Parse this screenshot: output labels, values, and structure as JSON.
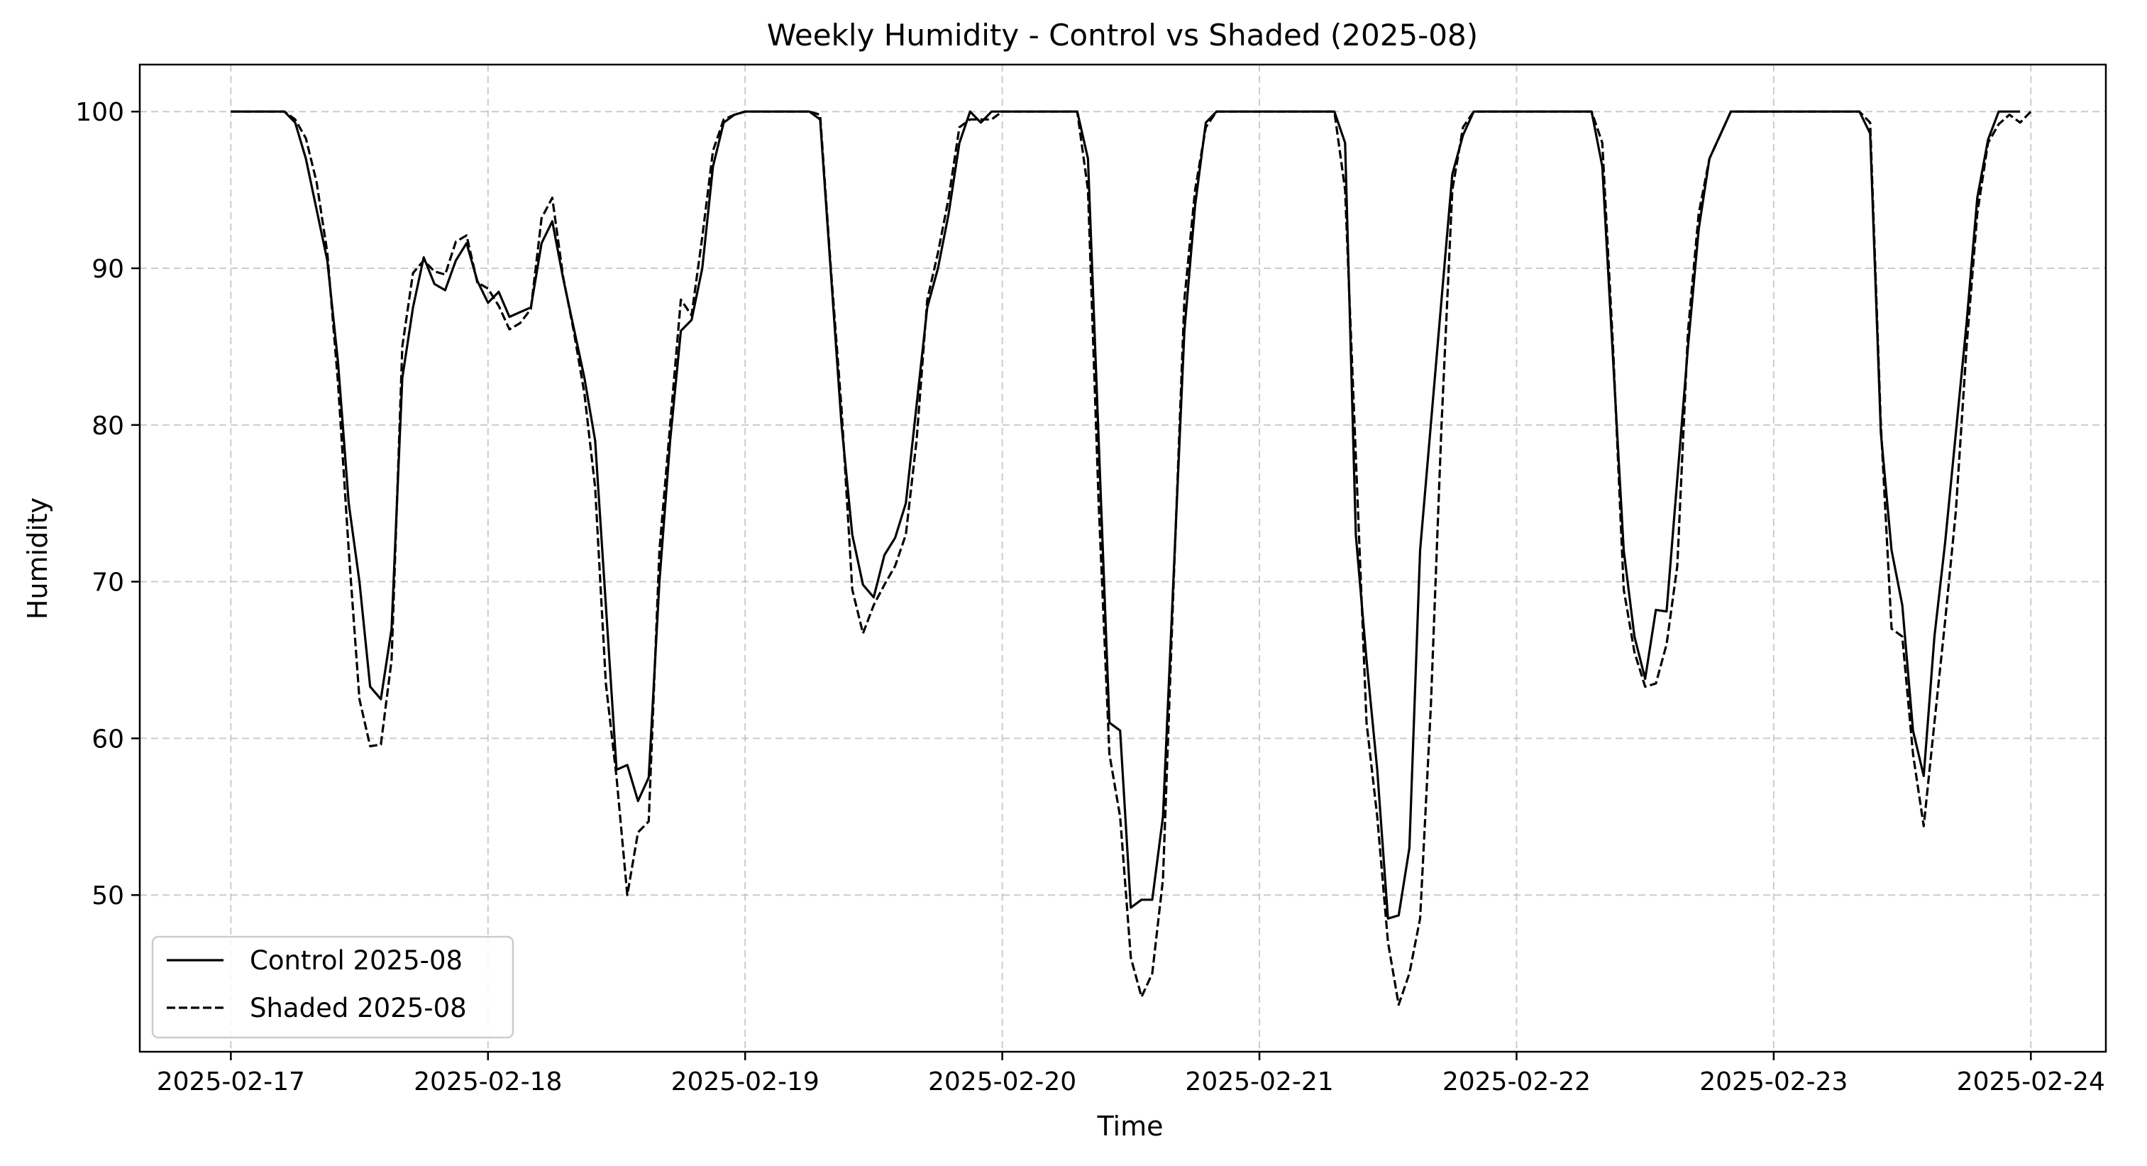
{
  "chart_data": {
    "type": "line",
    "title": "Weekly Humidity - Control vs Shaded (2025-08)",
    "xlabel": "Time",
    "ylabel": "Humidity",
    "x_range": [
      "2025-02-16T15:30",
      "2025-02-24T07:00"
    ],
    "x_ticks": [
      "2025-02-17",
      "2025-02-18",
      "2025-02-19",
      "2025-02-20",
      "2025-02-21",
      "2025-02-22",
      "2025-02-23",
      "2025-02-24"
    ],
    "ylim": [
      40,
      103
    ],
    "y_ticks": [
      50,
      60,
      70,
      80,
      90,
      100
    ],
    "grid": true,
    "legend_position": "lower-left",
    "series": [
      {
        "name": "Control 2025-08",
        "line_style": "solid",
        "color": "#000000",
        "points": [
          [
            "2025-02-17T00:00",
            100
          ],
          [
            "2025-02-17T05:00",
            100
          ],
          [
            "2025-02-17T06:00",
            99.3
          ],
          [
            "2025-02-17T07:00",
            97
          ],
          [
            "2025-02-17T09:00",
            90.5
          ],
          [
            "2025-02-17T10:00",
            84
          ],
          [
            "2025-02-17T11:00",
            75
          ],
          [
            "2025-02-17T12:00",
            70
          ],
          [
            "2025-02-17T13:00",
            63.3
          ],
          [
            "2025-02-17T14:00",
            62.5
          ],
          [
            "2025-02-17T15:00",
            67
          ],
          [
            "2025-02-17T16:00",
            83
          ],
          [
            "2025-02-17T17:00",
            87.5
          ],
          [
            "2025-02-17T18:00",
            90.7
          ],
          [
            "2025-02-17T19:00",
            89
          ],
          [
            "2025-02-17T20:00",
            88.6
          ],
          [
            "2025-02-17T21:00",
            90.5
          ],
          [
            "2025-02-17T22:00",
            91.6
          ],
          [
            "2025-02-17T23:00",
            89.2
          ],
          [
            "2025-02-18T00:00",
            87.8
          ],
          [
            "2025-02-18T01:00",
            88.5
          ],
          [
            "2025-02-18T02:00",
            86.9
          ],
          [
            "2025-02-18T04:00",
            87.5
          ],
          [
            "2025-02-18T05:00",
            91.6
          ],
          [
            "2025-02-18T06:00",
            93
          ],
          [
            "2025-02-18T07:00",
            89.4
          ],
          [
            "2025-02-18T09:00",
            83
          ],
          [
            "2025-02-18T10:00",
            79
          ],
          [
            "2025-02-18T12:00",
            58
          ],
          [
            "2025-02-18T13:00",
            58.3
          ],
          [
            "2025-02-18T14:00",
            56
          ],
          [
            "2025-02-18T15:00",
            57.5
          ],
          [
            "2025-02-18T16:00",
            70
          ],
          [
            "2025-02-18T17:00",
            79
          ],
          [
            "2025-02-18T18:00",
            86
          ],
          [
            "2025-02-18T19:00",
            86.7
          ],
          [
            "2025-02-18T20:00",
            90
          ],
          [
            "2025-02-18T21:00",
            96.5
          ],
          [
            "2025-02-18T22:00",
            99.3
          ],
          [
            "2025-02-18T23:00",
            99.8
          ],
          [
            "2025-02-19T00:00",
            100
          ],
          [
            "2025-02-19T06:00",
            100
          ],
          [
            "2025-02-19T07:00",
            99.5
          ],
          [
            "2025-02-19T09:00",
            80
          ],
          [
            "2025-02-19T10:00",
            73
          ],
          [
            "2025-02-19T11:00",
            69.8
          ],
          [
            "2025-02-19T12:00",
            69
          ],
          [
            "2025-02-19T13:00",
            71.7
          ],
          [
            "2025-02-19T14:00",
            72.8
          ],
          [
            "2025-02-19T15:00",
            75
          ],
          [
            "2025-02-19T17:00",
            87.5
          ],
          [
            "2025-02-19T18:00",
            90
          ],
          [
            "2025-02-19T19:00",
            93.5
          ],
          [
            "2025-02-19T20:00",
            98
          ],
          [
            "2025-02-19T21:00",
            100
          ],
          [
            "2025-02-19T22:00",
            99.3
          ],
          [
            "2025-02-19T23:00",
            100
          ],
          [
            "2025-02-20T07:00",
            100
          ],
          [
            "2025-02-20T08:00",
            97
          ],
          [
            "2025-02-20T10:00",
            61
          ],
          [
            "2025-02-20T11:00",
            60.5
          ],
          [
            "2025-02-20T12:00",
            49.2
          ],
          [
            "2025-02-20T13:00",
            49.7
          ],
          [
            "2025-02-20T14:00",
            49.7
          ],
          [
            "2025-02-20T15:00",
            55
          ],
          [
            "2025-02-20T17:00",
            86
          ],
          [
            "2025-02-20T18:00",
            94
          ],
          [
            "2025-02-20T19:00",
            99.3
          ],
          [
            "2025-02-20T20:00",
            100
          ],
          [
            "2025-02-21T07:00",
            100
          ],
          [
            "2025-02-21T08:00",
            98
          ],
          [
            "2025-02-21T09:00",
            73
          ],
          [
            "2025-02-21T10:00",
            65
          ],
          [
            "2025-02-21T11:00",
            58
          ],
          [
            "2025-02-21T12:00",
            48.5
          ],
          [
            "2025-02-21T13:00",
            48.7
          ],
          [
            "2025-02-21T14:00",
            53
          ],
          [
            "2025-02-21T15:00",
            72
          ],
          [
            "2025-02-21T16:00",
            80
          ],
          [
            "2025-02-21T17:00",
            88
          ],
          [
            "2025-02-21T18:00",
            96
          ],
          [
            "2025-02-21T19:00",
            98.5
          ],
          [
            "2025-02-21T20:00",
            100
          ],
          [
            "2025-02-22T07:00",
            100
          ],
          [
            "2025-02-22T08:00",
            96.5
          ],
          [
            "2025-02-22T10:00",
            72
          ],
          [
            "2025-02-22T11:00",
            66.5
          ],
          [
            "2025-02-22T12:00",
            63.8
          ],
          [
            "2025-02-22T13:00",
            68.2
          ],
          [
            "2025-02-22T14:00",
            68.1
          ],
          [
            "2025-02-22T16:00",
            85
          ],
          [
            "2025-02-22T17:00",
            92.5
          ],
          [
            "2025-02-22T18:00",
            97
          ],
          [
            "2025-02-22T20:00",
            100
          ],
          [
            "2025-02-23T08:00",
            100
          ],
          [
            "2025-02-23T09:00",
            98.6
          ],
          [
            "2025-02-23T10:00",
            79.5
          ],
          [
            "2025-02-23T11:00",
            72
          ],
          [
            "2025-02-23T12:00",
            68.5
          ],
          [
            "2025-02-23T13:00",
            60.5
          ],
          [
            "2025-02-23T14:00",
            57.6
          ],
          [
            "2025-02-23T15:00",
            66.5
          ],
          [
            "2025-02-23T16:00",
            72.5
          ],
          [
            "2025-02-23T17:00",
            79.5
          ],
          [
            "2025-02-23T18:00",
            86.5
          ],
          [
            "2025-02-23T19:00",
            94.5
          ],
          [
            "2025-02-23T20:00",
            98.2
          ],
          [
            "2025-02-23T21:00",
            100
          ],
          [
            "2025-02-23T23:00",
            100
          ]
        ]
      },
      {
        "name": "Shaded 2025-08",
        "line_style": "dashed",
        "color": "#000000",
        "points": [
          [
            "2025-02-17T00:00",
            100
          ],
          [
            "2025-02-17T05:00",
            100
          ],
          [
            "2025-02-17T06:00",
            99.5
          ],
          [
            "2025-02-17T07:00",
            98.3
          ],
          [
            "2025-02-17T08:00",
            95.5
          ],
          [
            "2025-02-17T09:00",
            91
          ],
          [
            "2025-02-17T10:00",
            82.7
          ],
          [
            "2025-02-17T11:00",
            72
          ],
          [
            "2025-02-17T12:00",
            62.5
          ],
          [
            "2025-02-17T13:00",
            59.5
          ],
          [
            "2025-02-17T14:00",
            59.6
          ],
          [
            "2025-02-17T15:00",
            65
          ],
          [
            "2025-02-17T16:00",
            85
          ],
          [
            "2025-02-17T17:00",
            89.7
          ],
          [
            "2025-02-17T18:00",
            90.5
          ],
          [
            "2025-02-17T19:00",
            89.8
          ],
          [
            "2025-02-17T20:00",
            89.6
          ],
          [
            "2025-02-17T21:00",
            91.7
          ],
          [
            "2025-02-17T22:00",
            92.1
          ],
          [
            "2025-02-17T23:00",
            89.1
          ],
          [
            "2025-02-18T00:00",
            88.7
          ],
          [
            "2025-02-18T01:00",
            87.6
          ],
          [
            "2025-02-18T02:00",
            86.1
          ],
          [
            "2025-02-18T03:00",
            86.5
          ],
          [
            "2025-02-18T04:00",
            87.4
          ],
          [
            "2025-02-18T05:00",
            93.2
          ],
          [
            "2025-02-18T06:00",
            94.5
          ],
          [
            "2025-02-18T07:00",
            89.5
          ],
          [
            "2025-02-18T08:00",
            86
          ],
          [
            "2025-02-18T09:00",
            82
          ],
          [
            "2025-02-18T10:00",
            76
          ],
          [
            "2025-02-18T11:00",
            63.5
          ],
          [
            "2025-02-18T12:00",
            57.5
          ],
          [
            "2025-02-18T13:00",
            50
          ],
          [
            "2025-02-18T14:00",
            54
          ],
          [
            "2025-02-18T15:00",
            54.7
          ],
          [
            "2025-02-18T16:00",
            72
          ],
          [
            "2025-02-18T17:00",
            80
          ],
          [
            "2025-02-18T18:00",
            88
          ],
          [
            "2025-02-18T19:00",
            87
          ],
          [
            "2025-02-18T20:00",
            92
          ],
          [
            "2025-02-18T21:00",
            97.5
          ],
          [
            "2025-02-18T22:00",
            99.5
          ],
          [
            "2025-02-18T23:00",
            99.8
          ],
          [
            "2025-02-19T00:00",
            100
          ],
          [
            "2025-02-19T06:00",
            100
          ],
          [
            "2025-02-19T07:00",
            99.8
          ],
          [
            "2025-02-19T08:00",
            90
          ],
          [
            "2025-02-19T09:00",
            81
          ],
          [
            "2025-02-19T10:00",
            69.5
          ],
          [
            "2025-02-19T11:00",
            66.7
          ],
          [
            "2025-02-19T12:00",
            68.5
          ],
          [
            "2025-02-19T13:00",
            69.8
          ],
          [
            "2025-02-19T14:00",
            71
          ],
          [
            "2025-02-19T15:00",
            73
          ],
          [
            "2025-02-19T16:00",
            79
          ],
          [
            "2025-02-19T17:00",
            88
          ],
          [
            "2025-02-19T18:00",
            91
          ],
          [
            "2025-02-19T19:00",
            94.5
          ],
          [
            "2025-02-19T20:00",
            99
          ],
          [
            "2025-02-19T21:00",
            99.5
          ],
          [
            "2025-02-19T23:00",
            99.5
          ],
          [
            "2025-02-20T00:00",
            100
          ],
          [
            "2025-02-20T07:00",
            100
          ],
          [
            "2025-02-20T08:00",
            95
          ],
          [
            "2025-02-20T09:00",
            75
          ],
          [
            "2025-02-20T10:00",
            59
          ],
          [
            "2025-02-20T11:00",
            55
          ],
          [
            "2025-02-20T12:00",
            46
          ],
          [
            "2025-02-20T13:00",
            43.5
          ],
          [
            "2025-02-20T14:00",
            45
          ],
          [
            "2025-02-20T15:00",
            51
          ],
          [
            "2025-02-20T16:00",
            70
          ],
          [
            "2025-02-20T17:00",
            88
          ],
          [
            "2025-02-20T18:00",
            95
          ],
          [
            "2025-02-20T19:00",
            99
          ],
          [
            "2025-02-20T20:00",
            100
          ],
          [
            "2025-02-21T07:00",
            100
          ],
          [
            "2025-02-21T08:00",
            95
          ],
          [
            "2025-02-21T09:00",
            78
          ],
          [
            "2025-02-21T10:00",
            61
          ],
          [
            "2025-02-21T11:00",
            55
          ],
          [
            "2025-02-21T12:00",
            47
          ],
          [
            "2025-02-21T13:00",
            43
          ],
          [
            "2025-02-21T14:00",
            45
          ],
          [
            "2025-02-21T15:00",
            48.5
          ],
          [
            "2025-02-21T16:00",
            62
          ],
          [
            "2025-02-21T17:00",
            80
          ],
          [
            "2025-02-21T18:00",
            95
          ],
          [
            "2025-02-21T19:00",
            99
          ],
          [
            "2025-02-21T20:00",
            100
          ],
          [
            "2025-02-22T07:00",
            100
          ],
          [
            "2025-02-22T08:00",
            98
          ],
          [
            "2025-02-22T09:00",
            85
          ],
          [
            "2025-02-22T10:00",
            69.5
          ],
          [
            "2025-02-22T11:00",
            65.5
          ],
          [
            "2025-02-22T12:00",
            63.3
          ],
          [
            "2025-02-22T13:00",
            63.5
          ],
          [
            "2025-02-22T14:00",
            66
          ],
          [
            "2025-02-22T15:00",
            71
          ],
          [
            "2025-02-22T16:00",
            86
          ],
          [
            "2025-02-22T17:00",
            93.5
          ],
          [
            "2025-02-22T18:00",
            97
          ],
          [
            "2025-02-22T19:00",
            98.5
          ],
          [
            "2025-02-22T20:00",
            100
          ],
          [
            "2025-02-23T08:00",
            100
          ],
          [
            "2025-02-23T09:00",
            99.3
          ],
          [
            "2025-02-23T10:00",
            80
          ],
          [
            "2025-02-23T11:00",
            67
          ],
          [
            "2025-02-23T12:00",
            66.5
          ],
          [
            "2025-02-23T13:00",
            59
          ],
          [
            "2025-02-23T14:00",
            54.4
          ],
          [
            "2025-02-23T15:00",
            61
          ],
          [
            "2025-02-23T16:00",
            67.5
          ],
          [
            "2025-02-23T17:00",
            74.5
          ],
          [
            "2025-02-23T18:00",
            85
          ],
          [
            "2025-02-23T19:00",
            93.5
          ],
          [
            "2025-02-23T20:00",
            98
          ],
          [
            "2025-02-23T21:00",
            99.2
          ],
          [
            "2025-02-23T22:00",
            99.8
          ],
          [
            "2025-02-23T23:00",
            99.3
          ],
          [
            "2025-02-24T00:00",
            100
          ]
        ]
      }
    ]
  }
}
